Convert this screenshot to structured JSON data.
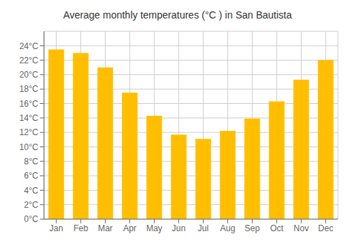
{
  "chart_data": {
    "type": "bar",
    "title": "Average monthly temperatures (°C ) in San Bautista",
    "categories": [
      "Jan",
      "Feb",
      "Mar",
      "Apr",
      "May",
      "Jun",
      "Jul",
      "Aug",
      "Sep",
      "Oct",
      "Nov",
      "Dec"
    ],
    "values": [
      23.5,
      23.0,
      21.0,
      17.5,
      14.3,
      11.7,
      11.1,
      12.2,
      13.9,
      16.3,
      19.3,
      22.0
    ],
    "color": "#FFBF00",
    "ylim": [
      0,
      26
    ],
    "yticks": [
      {
        "value": 0,
        "label": "0°C"
      },
      {
        "value": 2,
        "label": "2°C"
      },
      {
        "value": 4,
        "label": "4°C"
      },
      {
        "value": 6,
        "label": "6°C"
      },
      {
        "value": 8,
        "label": "8°C"
      },
      {
        "value": 10,
        "label": "10°C"
      },
      {
        "value": 12,
        "label": "12°C"
      },
      {
        "value": 14,
        "label": "14°C"
      },
      {
        "value": 16,
        "label": "16°C"
      },
      {
        "value": 18,
        "label": "18°C"
      },
      {
        "value": 20,
        "label": "20°C"
      },
      {
        "value": 22,
        "label": "22°C"
      },
      {
        "value": 24,
        "label": "24°C"
      }
    ],
    "grid": true
  }
}
